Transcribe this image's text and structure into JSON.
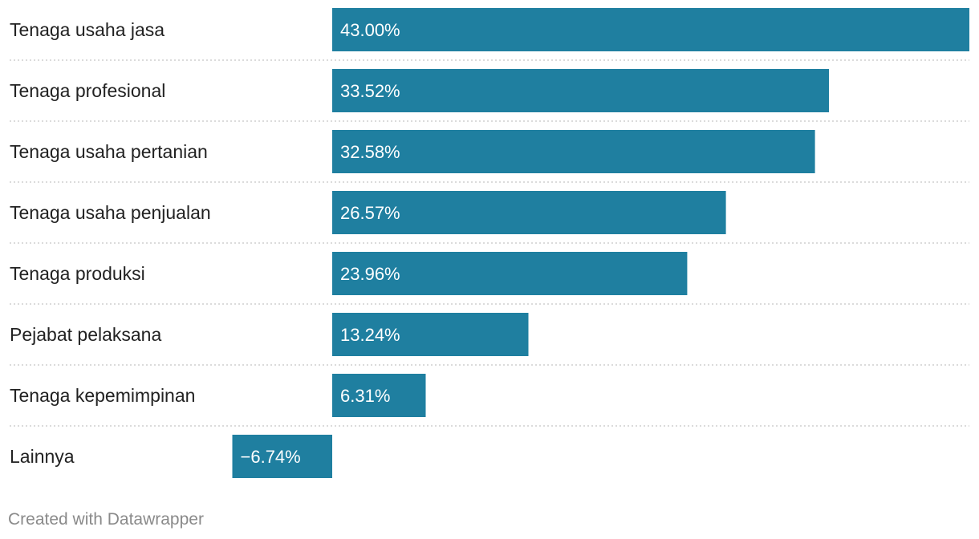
{
  "chart_data": {
    "type": "bar",
    "orientation": "horizontal",
    "categories": [
      "Tenaga usaha jasa",
      "Tenaga profesional",
      "Tenaga usaha pertanian",
      "Tenaga usaha penjualan",
      "Tenaga produksi",
      "Pejabat pelaksana",
      "Tenaga kepemimpinan",
      "Lainnya"
    ],
    "values": [
      43.0,
      33.52,
      32.58,
      26.57,
      23.96,
      13.24,
      6.31,
      -6.74
    ],
    "value_labels": [
      "43.00%",
      "33.52%",
      "32.58%",
      "26.57%",
      "23.96%",
      "13.24%",
      "6.31%",
      "−6.74%"
    ],
    "bar_color": "#1f7fa0",
    "grid": false
  },
  "footer": {
    "credit": "Created with Datawrapper"
  }
}
